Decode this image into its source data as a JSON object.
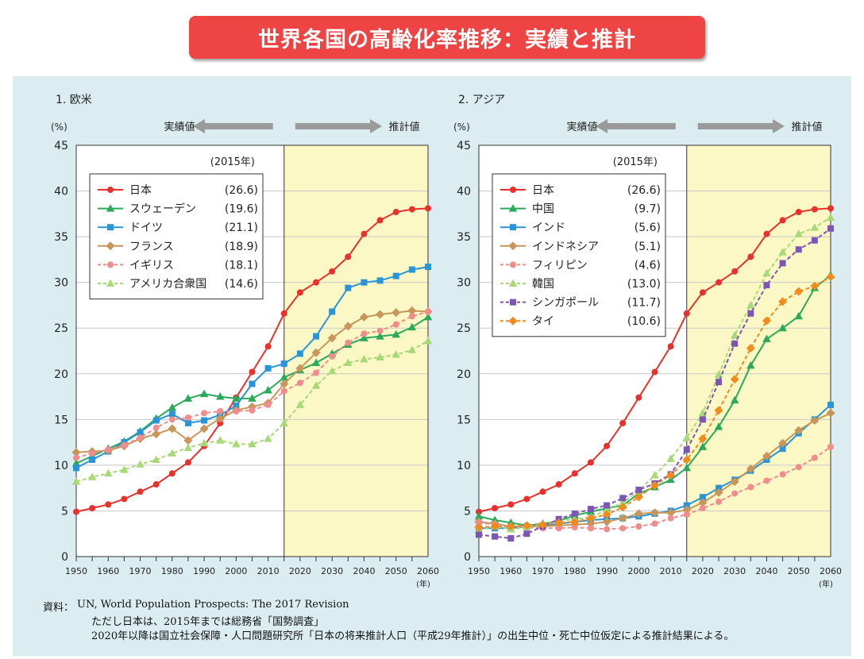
{
  "title": "世界各国の高齢化率推移：実績と推計",
  "source": {
    "label": "資料：",
    "line1": "UN, World Population Prospects: The 2017 Revision",
    "line2": "ただし日本は、2015年までは総務省「国勢調査」",
    "line3": "2020年以降は国立社会保障・人口問題研究所「日本の将来推計人口（平成29年推計）」の出生中位・死亡中位仮定による推計結果による。"
  },
  "colors": {
    "background": "#dcedf1",
    "projection_band": "#fcf8c6",
    "arrow": "#9a9a9a",
    "title_banner": "#ee4444"
  },
  "chart_data": [
    {
      "type": "line",
      "title": "1. 欧米",
      "ylabel": "(%)",
      "xlabel": "(年)",
      "ylim": [
        0,
        45
      ],
      "xlim": [
        1950,
        2060
      ],
      "y_ticks": [
        0,
        5,
        10,
        15,
        20,
        25,
        30,
        35,
        40,
        45
      ],
      "x_ticks": [
        1950,
        1960,
        1970,
        1980,
        1990,
        2000,
        2010,
        2020,
        2030,
        2040,
        2050,
        2060
      ],
      "actual_label": "実績値",
      "projection_label": "推計値",
      "projection_start": 2015,
      "legend_title": "(2015年)",
      "legend_position": "top-left",
      "grid": "horizontal",
      "x": [
        1950,
        1955,
        1960,
        1965,
        1970,
        1975,
        1980,
        1985,
        1990,
        1995,
        2000,
        2005,
        2010,
        2015,
        2020,
        2025,
        2030,
        2035,
        2040,
        2045,
        2050,
        2055,
        2060
      ],
      "series": [
        {
          "name": "日本",
          "value_label": "(26.6)",
          "color": "#e8312a",
          "marker": "circle",
          "dashed": false,
          "values": [
            4.9,
            5.3,
            5.7,
            6.3,
            7.1,
            7.9,
            9.1,
            10.3,
            12.1,
            14.6,
            17.4,
            20.2,
            23.0,
            26.6,
            28.9,
            30.0,
            31.2,
            32.8,
            35.3,
            36.8,
            37.7,
            38.0,
            38.1
          ]
        },
        {
          "name": "スウェーデン",
          "value_label": "(19.6)",
          "color": "#2aaa5a",
          "marker": "triangle",
          "dashed": false,
          "values": [
            10.2,
            11.0,
            11.8,
            12.6,
            13.7,
            15.1,
            16.3,
            17.3,
            17.8,
            17.5,
            17.3,
            17.3,
            18.2,
            19.6,
            20.4,
            21.2,
            22.2,
            23.2,
            23.9,
            24.1,
            24.3,
            25.1,
            26.2
          ]
        },
        {
          "name": "ドイツ",
          "value_label": "(21.1)",
          "color": "#2a95d6",
          "marker": "square",
          "dashed": false,
          "values": [
            9.7,
            10.6,
            11.5,
            12.5,
            13.6,
            14.9,
            15.6,
            14.6,
            14.9,
            15.5,
            16.5,
            18.9,
            20.6,
            21.1,
            22.2,
            24.1,
            26.8,
            29.4,
            30.0,
            30.2,
            30.7,
            31.4,
            31.7
          ]
        },
        {
          "name": "フランス",
          "value_label": "(18.9)",
          "color": "#c8965a",
          "marker": "diamond",
          "dashed": false,
          "values": [
            11.4,
            11.5,
            11.6,
            12.1,
            12.9,
            13.4,
            14.0,
            12.7,
            14.0,
            15.1,
            16.0,
            16.4,
            16.8,
            18.9,
            20.6,
            22.3,
            23.9,
            25.2,
            26.2,
            26.5,
            26.7,
            26.9,
            26.8
          ]
        },
        {
          "name": "イギリス",
          "value_label": "(18.1)",
          "color": "#f08c8c",
          "marker": "circle",
          "dashed": true,
          "values": [
            10.8,
            11.3,
            11.7,
            12.2,
            13.0,
            14.1,
            15.0,
            15.2,
            15.7,
            15.9,
            15.9,
            16.0,
            16.6,
            18.1,
            19.0,
            20.1,
            21.9,
            23.4,
            24.4,
            24.7,
            25.4,
            26.3,
            26.8
          ]
        },
        {
          "name": "アメリカ合衆国",
          "value_label": "(14.6)",
          "color": "#a8d878",
          "marker": "triangle",
          "dashed": true,
          "values": [
            8.2,
            8.7,
            9.1,
            9.5,
            10.1,
            10.6,
            11.3,
            11.9,
            12.4,
            12.7,
            12.3,
            12.3,
            12.9,
            14.6,
            16.6,
            18.7,
            20.3,
            21.2,
            21.6,
            21.8,
            22.1,
            22.6,
            23.6
          ]
        }
      ]
    },
    {
      "type": "line",
      "title": "2. アジア",
      "ylabel": "(%)",
      "xlabel": "(年)",
      "ylim": [
        0,
        45
      ],
      "xlim": [
        1950,
        2060
      ],
      "y_ticks": [
        0,
        5,
        10,
        15,
        20,
        25,
        30,
        35,
        40,
        45
      ],
      "x_ticks": [
        1950,
        1960,
        1970,
        1980,
        1990,
        2000,
        2010,
        2020,
        2030,
        2040,
        2050,
        2060
      ],
      "actual_label": "実績値",
      "projection_label": "推計値",
      "projection_start": 2015,
      "legend_title": "(2015年)",
      "legend_position": "top-left",
      "grid": "horizontal",
      "x": [
        1950,
        1955,
        1960,
        1965,
        1970,
        1975,
        1980,
        1985,
        1990,
        1995,
        2000,
        2005,
        2010,
        2015,
        2020,
        2025,
        2030,
        2035,
        2040,
        2045,
        2050,
        2055,
        2060
      ],
      "series": [
        {
          "name": "日本",
          "value_label": "(26.6)",
          "color": "#e8312a",
          "marker": "circle",
          "dashed": false,
          "values": [
            4.9,
            5.3,
            5.7,
            6.3,
            7.1,
            7.9,
            9.1,
            10.3,
            12.1,
            14.6,
            17.4,
            20.2,
            23.0,
            26.6,
            28.9,
            30.0,
            31.2,
            32.8,
            35.3,
            36.8,
            37.7,
            38.0,
            38.1
          ]
        },
        {
          "name": "中国",
          "value_label": "(9.7)",
          "color": "#2aaa5a",
          "marker": "triangle",
          "dashed": false,
          "values": [
            4.4,
            4.0,
            3.7,
            3.4,
            3.6,
            3.9,
            4.5,
            4.9,
            5.3,
            5.6,
            6.9,
            7.6,
            8.4,
            9.7,
            12.0,
            14.2,
            17.1,
            20.9,
            23.8,
            25.0,
            26.3,
            29.4,
            30.8
          ]
        },
        {
          "name": "インド",
          "value_label": "(5.6)",
          "color": "#2a95d6",
          "marker": "square",
          "dashed": false,
          "values": [
            3.1,
            3.1,
            3.1,
            3.3,
            3.4,
            3.6,
            3.8,
            4.0,
            4.1,
            4.2,
            4.4,
            4.7,
            5.0,
            5.6,
            6.5,
            7.5,
            8.4,
            9.4,
            10.6,
            11.8,
            13.5,
            15.0,
            16.6
          ]
        },
        {
          "name": "インドネシア",
          "value_label": "(5.1)",
          "color": "#c8965a",
          "marker": "diamond",
          "dashed": false,
          "values": [
            3.8,
            3.6,
            3.3,
            3.3,
            3.3,
            3.4,
            3.5,
            3.6,
            3.8,
            4.2,
            4.7,
            4.8,
            4.8,
            5.1,
            5.9,
            7.0,
            8.2,
            9.6,
            11.0,
            12.4,
            13.8,
            14.9,
            15.7
          ]
        },
        {
          "name": "フィリピン",
          "value_label": "(4.6)",
          "color": "#f08c8c",
          "marker": "circle",
          "dashed": true,
          "values": [
            3.7,
            3.5,
            3.3,
            3.2,
            3.1,
            3.1,
            3.2,
            3.1,
            3.0,
            3.1,
            3.3,
            3.6,
            4.2,
            4.6,
            5.3,
            6.0,
            6.9,
            7.6,
            8.3,
            9.0,
            9.8,
            10.8,
            12.0
          ]
        },
        {
          "name": "韓国",
          "value_label": "(13.0)",
          "color": "#a8d878",
          "marker": "triangle",
          "dashed": true,
          "values": [
            2.9,
            3.3,
            3.0,
            3.2,
            3.5,
            3.9,
            4.1,
            4.3,
            5.1,
            5.9,
            7.2,
            8.9,
            10.7,
            13.0,
            15.7,
            19.9,
            24.2,
            27.5,
            31.0,
            33.3,
            35.3,
            36.0,
            37.1
          ]
        },
        {
          "name": "シンガポール",
          "value_label": "(11.7)",
          "color": "#7d55b4",
          "marker": "square",
          "dashed": true,
          "values": [
            2.4,
            2.2,
            2.0,
            2.5,
            3.3,
            4.1,
            4.7,
            5.2,
            5.6,
            6.4,
            7.3,
            8.0,
            9.0,
            11.7,
            15.0,
            19.1,
            23.3,
            26.6,
            29.7,
            32.1,
            33.6,
            34.6,
            35.9
          ]
        },
        {
          "name": "タイ",
          "value_label": "(10.6)",
          "color": "#f08c1e",
          "marker": "diamond",
          "dashed": true,
          "values": [
            3.2,
            3.3,
            3.3,
            3.4,
            3.5,
            3.7,
            3.8,
            4.2,
            4.6,
            5.4,
            6.5,
            7.8,
            8.9,
            10.6,
            12.9,
            16.0,
            19.4,
            22.8,
            25.8,
            27.9,
            29.0,
            29.6,
            30.6
          ]
        }
      ]
    }
  ]
}
